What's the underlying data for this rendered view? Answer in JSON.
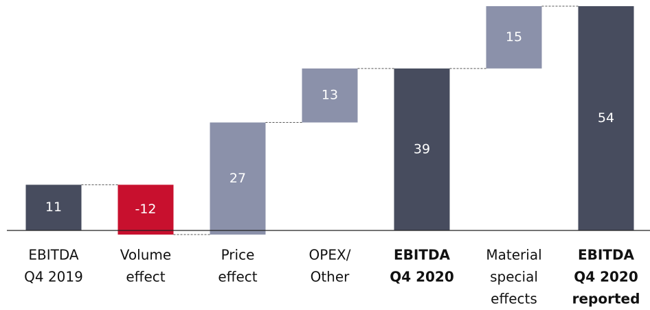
{
  "chart_data": {
    "type": "waterfall",
    "categories": [
      [
        "EBITDA",
        "Q4 2019"
      ],
      [
        "Volume",
        "effect"
      ],
      [
        "Price",
        "effect"
      ],
      [
        "OPEX/",
        "Other"
      ],
      [
        "EBITDA",
        "Q4 2020"
      ],
      [
        "Material",
        "special",
        "effects"
      ],
      [
        "EBITDA",
        "Q4 2020",
        "reported"
      ]
    ],
    "values": [
      11,
      -12,
      27,
      13,
      39,
      15,
      54
    ],
    "is_total": [
      true,
      false,
      false,
      false,
      true,
      false,
      true
    ],
    "bold_labels": [
      false,
      false,
      false,
      false,
      true,
      false,
      true
    ],
    "colors": {
      "total": "#474c5e",
      "increase": "#8b91aa",
      "decrease": "#c8102e"
    }
  }
}
